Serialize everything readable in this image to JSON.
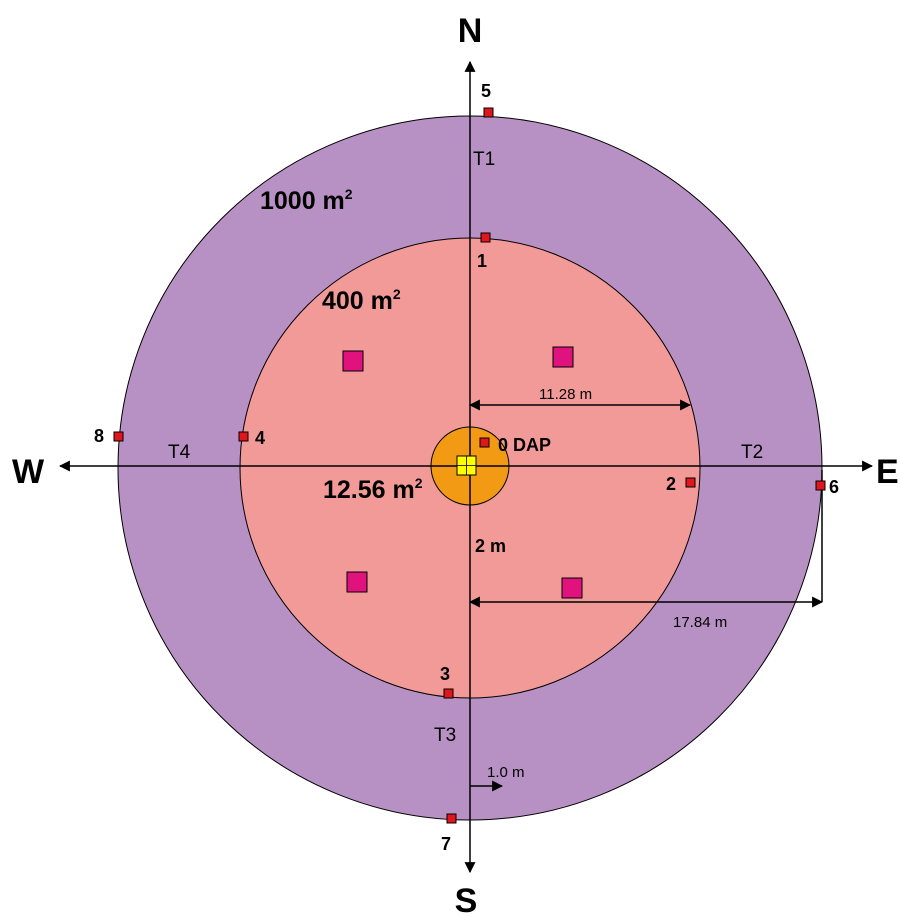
{
  "directions": {
    "north": "N",
    "south": "S",
    "east": "E",
    "west": "W"
  },
  "areas": {
    "outer": "1000 m",
    "middle": "400 m",
    "inner": "12.56 m",
    "superscript": "2"
  },
  "transects": {
    "t1": "T1",
    "t2": "T2",
    "t3": "T3",
    "t4": "T4"
  },
  "points": {
    "p0": "0 DAP",
    "p1": "1",
    "p2": "2",
    "p3": "3",
    "p4": "4",
    "p5": "5",
    "p6": "6",
    "p7": "7",
    "p8": "8"
  },
  "dimensions": {
    "middle_radius": "11.28 m",
    "outer_radius": "17.84 m",
    "inner_radius": "2 m",
    "offset": "1.0 m"
  },
  "colors": {
    "outer_circle": "#b891c4",
    "middle_circle": "#f29a97",
    "inner_circle": "#f29a14",
    "marker": "#e0161c",
    "subplot": "#e0137e",
    "center": "#ffff00"
  }
}
